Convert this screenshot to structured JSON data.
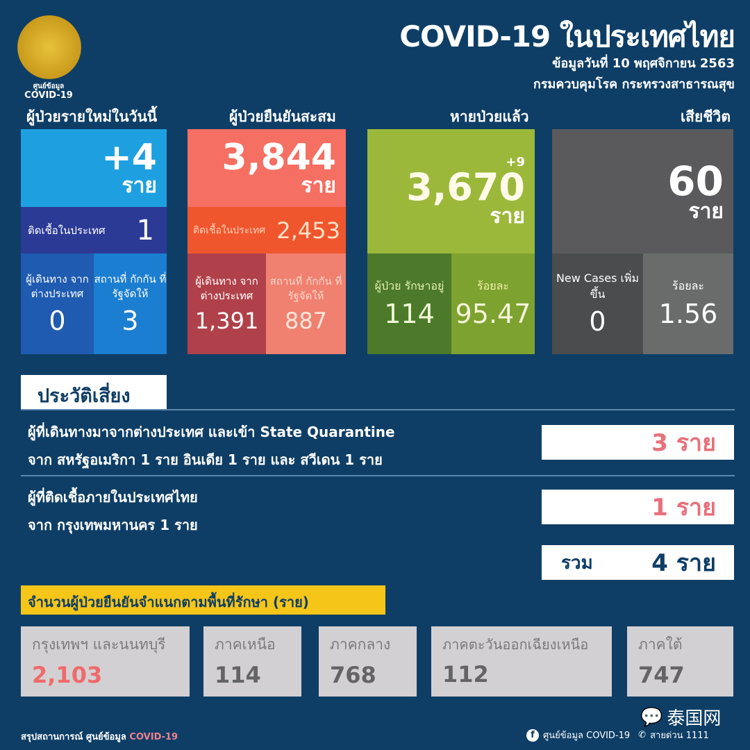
{
  "header": {
    "logo_text_th": "ศูนย์ข้อมูล",
    "logo_text_en": "COVID-19",
    "title": "COVID-19 ในประเทศไทย",
    "date": "ข้อมูลวันที่ 10 พฤศจิกายน 2563",
    "source": "กรมควบคุมโรค กระทรวงสาธารณสุข"
  },
  "new_cases": {
    "heading": "ผู้ป่วยรายใหม่ในวันนี้",
    "total": "+4",
    "unit": "ราย",
    "local_label": "ติดเชื้อในประเทศ",
    "local": "1",
    "travel_label": "ผู้เดินทาง จากต่างประเทศ",
    "travel": "0",
    "quarantine_label": "สถานที่ กักกัน ที่รัฐจัดให้",
    "quarantine": "3"
  },
  "cumulative": {
    "heading": "ผู้ป่วยยืนยันสะสม",
    "total": "3,844",
    "unit": "ราย",
    "local_label": "ติดเชื้อในประเทศ",
    "local": "2,453",
    "travel_label": "ผู้เดินทาง จากต่างประเทศ",
    "travel": "1,391",
    "quarantine_label": "สถานที่ กักกัน ที่รัฐจัดให้",
    "quarantine": "887"
  },
  "recovered": {
    "heading": "หายป่วยแล้ว",
    "delta": "+9",
    "total": "3,670",
    "unit": "ราย",
    "treating_label": "ผู้ป่วย รักษาอยู่",
    "treating": "114",
    "percent_label": "ร้อยละ",
    "percent": "95.47"
  },
  "deaths": {
    "heading": "เสียชีวิต",
    "total": "60",
    "unit": "ราย",
    "new_label": "New Cases เพิ่มขึ้น",
    "new": "0",
    "percent_label": "ร้อยละ",
    "percent": "1.56"
  },
  "risk": {
    "heading": "ประวัติเสี่ยง",
    "rows": [
      {
        "line1": "ผู้ที่เดินทางมาจากต่างประเทศ และเข้า State Quarantine",
        "line2": "จาก สหรัฐอเมริกา 1 ราย อินเดีย 1 ราย และ สวีเดน 1 ราย",
        "count": "3 ราย"
      },
      {
        "line1": "ผู้ที่ติดเชื้อภายในประเทศไทย",
        "line2": "จาก กรุงเทพมหานคร 1 ราย",
        "count": "1 ราย"
      }
    ],
    "total_label": "รวม",
    "total": "4 ราย"
  },
  "regions": {
    "heading": "จำนวนผู้ป่วยยืนยันจำแนกตามพื้นที่รักษา (ราย)",
    "items": [
      {
        "label": "กรุงเทพฯ และนนทบุรี",
        "value": "2,103"
      },
      {
        "label": "ภาคเหนือ",
        "value": "114"
      },
      {
        "label": "ภาคกลาง",
        "value": "768"
      },
      {
        "label": "ภาคตะวันออกเฉียงเหนือ",
        "value": "112"
      },
      {
        "label": "ภาคใต้",
        "value": "747"
      }
    ]
  },
  "footer": {
    "left": "สรุปสถานการณ์ ศูนย์ข้อมูล",
    "left_accent": "COVID-19",
    "facebook": "ศูนย์ข้อมูล COVID-19",
    "hotline": "สายด่วน 1111",
    "watermark": "泰国网"
  },
  "colors": {
    "background": "#0e3e66",
    "new_cases": "#1ea0e0",
    "cumulative": "#f56f62",
    "recovered": "#9cb83a",
    "deaths": "#5a5a5c",
    "highlight": "#f5c518",
    "accent_red": "#e8707a"
  }
}
